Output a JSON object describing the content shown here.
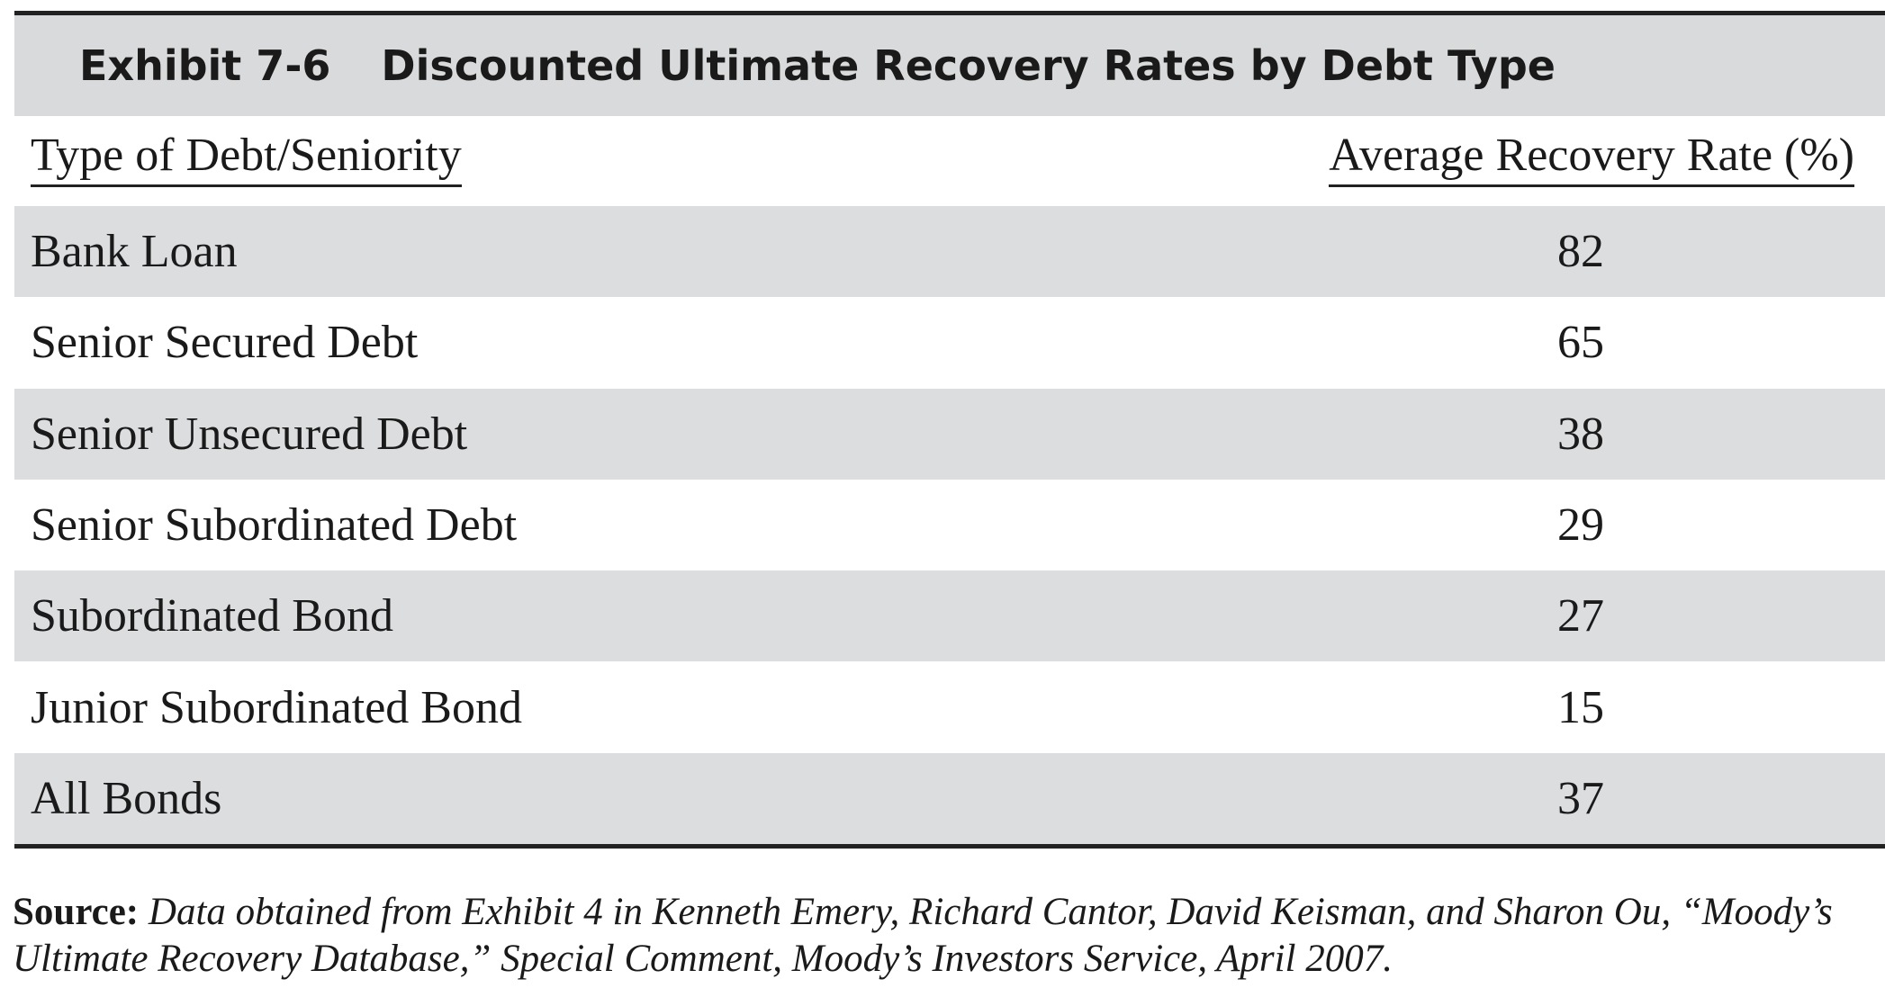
{
  "exhibit": {
    "number": "Exhibit 7-6",
    "title": "Discounted Ultimate Recovery Rates by Debt Type"
  },
  "table": {
    "headers": {
      "type": "Type of Debt/Seniority",
      "rate": "Average Recovery Rate (%)"
    },
    "rows": [
      {
        "type": "Bank Loan",
        "rate": "82"
      },
      {
        "type": "Senior Secured Debt",
        "rate": "65"
      },
      {
        "type": "Senior Unsecured Debt",
        "rate": "38"
      },
      {
        "type": "Senior Subordinated Debt",
        "rate": "29"
      },
      {
        "type": "Subordinated Bond",
        "rate": "27"
      },
      {
        "type": "Junior Subordinated Bond",
        "rate": "15"
      },
      {
        "type": "All Bonds",
        "rate": "37"
      }
    ]
  },
  "source": {
    "label": "Source:",
    "text": "Data obtained from Exhibit 4 in Kenneth Emery, Richard Cantor, David Keisman, and Sharon Ou, “Moody’s Ultimate Recovery Database,” Special Comment, Moody’s Investors Service, April 2007."
  },
  "colors": {
    "title_bar": "#d9dadb",
    "row_shade": "#dcdddf",
    "rule": "#222222"
  }
}
